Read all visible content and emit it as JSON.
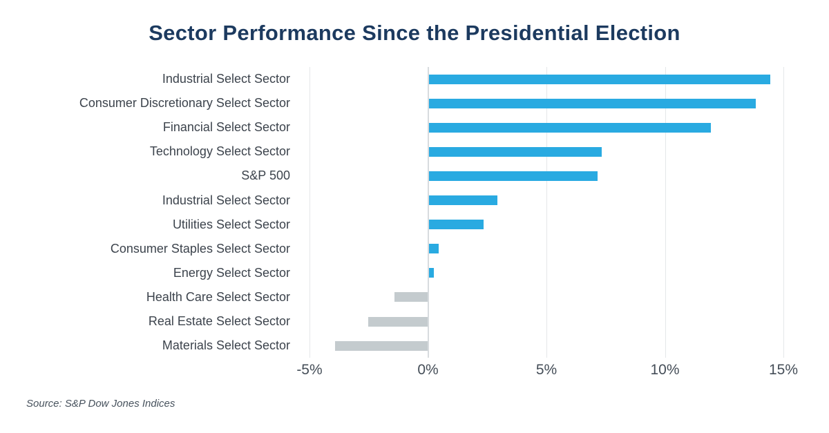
{
  "title": "Sector Performance Since the Presidential Election",
  "source": "Source: S&P Dow Jones Indices",
  "chart_data": {
    "type": "bar",
    "orientation": "horizontal",
    "title": "Sector Performance Since the Presidential Election",
    "xlabel": "",
    "ylabel": "",
    "xlim": [
      -5,
      15
    ],
    "grid": true,
    "legend": "none",
    "categories": [
      "Industrial Select Sector",
      "Consumer Discretionary Select Sector",
      "Financial Select Sector",
      "Technology Select Sector",
      "S&P 500",
      "Industrial Select Sector",
      "Utilities Select Sector",
      "Consumer Staples Select Sector",
      "Energy Select Sector",
      "Health Care Select Sector",
      "Real Estate Select Sector",
      "Materials Select Sector"
    ],
    "values": [
      14.4,
      13.8,
      11.9,
      7.3,
      7.1,
      2.9,
      2.3,
      0.4,
      0.2,
      -1.4,
      -2.5,
      -3.9
    ],
    "value_unit": "%",
    "xticks": [
      {
        "label": "-5%",
        "value": -5
      },
      {
        "label": "0%",
        "value": 0
      },
      {
        "label": "5%",
        "value": 5
      },
      {
        "label": "10%",
        "value": 10
      },
      {
        "label": "15%",
        "value": 15
      }
    ],
    "palette": {
      "positive_bar": "#29aae1",
      "negative_bar": "#c4cbce",
      "gridline": "#e4e7e9",
      "zero_line": "#d7dbde",
      "title_text": "#1c3a5f",
      "label_text": "#3c434c",
      "tick_text": "#454e58"
    }
  }
}
